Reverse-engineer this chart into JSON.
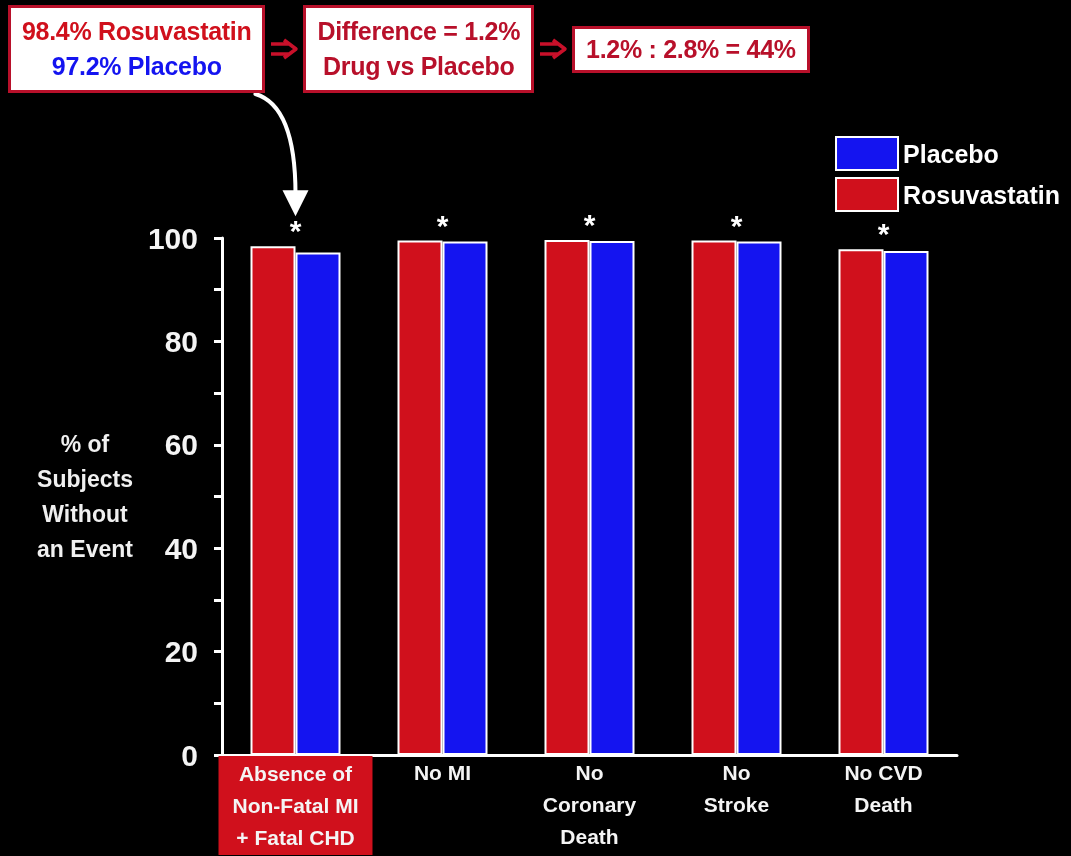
{
  "chart_data": {
    "type": "bar",
    "categories": [
      "Absence of\nNon-Fatal MI\n+ Fatal CHD",
      "No MI",
      "No\nCoronary\nDeath",
      "No\nStroke",
      "No CVD\nDeath"
    ],
    "series": [
      {
        "name": "Rosuvastatin",
        "color": "#d0101c",
        "values": [
          98.4,
          99.5,
          99.6,
          99.5,
          97.8
        ]
      },
      {
        "name": "Placebo",
        "color": "#1414f0",
        "values": [
          97.2,
          99.3,
          99.4,
          99.3,
          97.5
        ]
      }
    ],
    "ylabel": "% of\nSubjects\nWithout\nan Event",
    "ylim": [
      0,
      100
    ],
    "yticks": [
      0,
      {
        "value": 10,
        "label": null
      },
      20,
      {
        "value": 30,
        "label": null
      },
      40,
      {
        "value": 50,
        "label": null
      },
      60,
      {
        "value": 70,
        "label": null
      },
      80,
      {
        "value": 90,
        "label": null
      },
      100
    ],
    "legend": "top right",
    "annotations": [
      "98.4% Rosuvastatin\n97.2% Placebo",
      "Difference = 1.2%\nDrug vs Placebo",
      "1.2% : 2.8% = 44%",
      {
        "text": "*",
        "x": "Absence of\nNon-Fatal MI\n+ Fatal CHD",
        "y": 98.4
      },
      {
        "text": "*",
        "x": "No MI",
        "y": 99.5
      },
      {
        "text": "*",
        "x": "No\nCoronary\nDeath",
        "y": 99.6
      },
      {
        "text": "*",
        "x": "No\nStroke",
        "y": 99.5
      },
      {
        "text": "*",
        "x": "No CVD\nDeath",
        "y": 97.8
      }
    ]
  }
}
